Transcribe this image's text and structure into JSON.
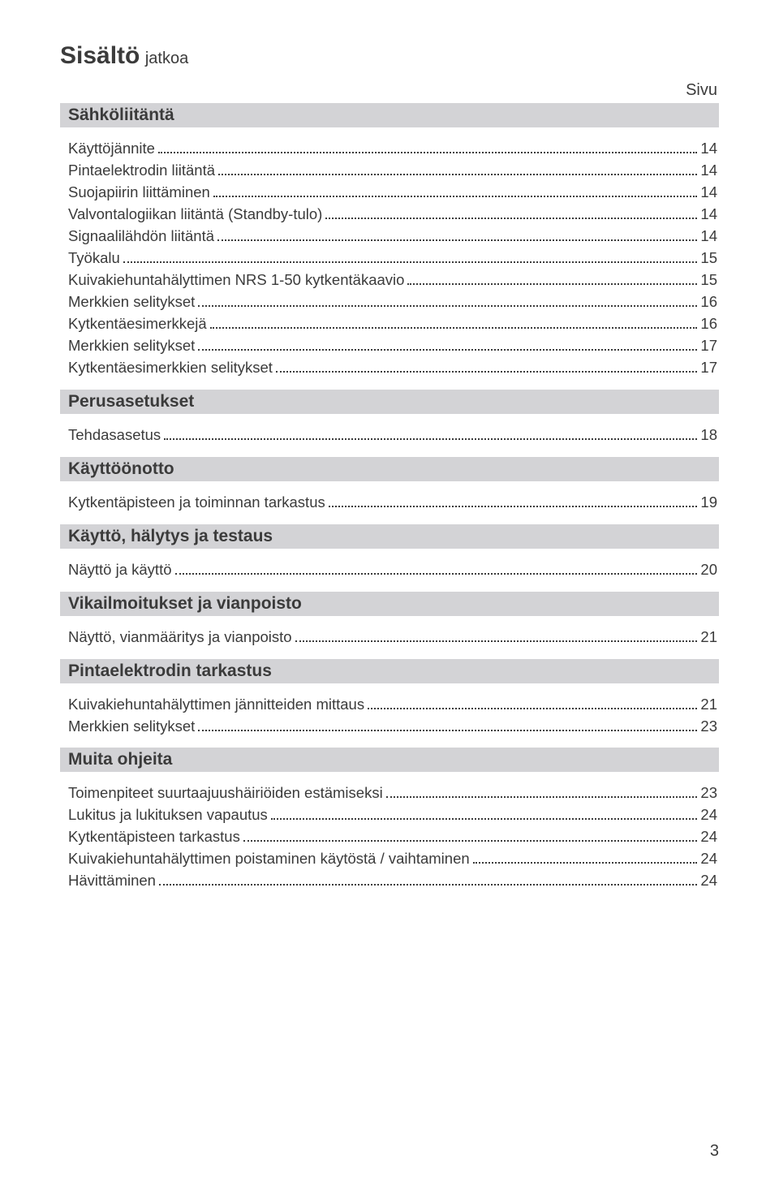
{
  "title": {
    "main": "Sisältö",
    "suffix": "jatkoa"
  },
  "page_label": "Sivu",
  "page_number": "3",
  "colors": {
    "section_bg": "#d3d3d6",
    "text": "#3b3b3b",
    "background": "#ffffff"
  },
  "sections": [
    {
      "heading": "Sähköliitäntä",
      "items": [
        {
          "label": "Käyttöjännite",
          "page": "14"
        },
        {
          "label": "Pintaelektrodin liitäntä",
          "page": "14"
        },
        {
          "label": "Suojapiirin liittäminen",
          "page": "14"
        },
        {
          "label": "Valvontalogiikan liitäntä (Standby-tulo)",
          "page": "14"
        },
        {
          "label": "Signaalilähdön liitäntä",
          "page": "14"
        },
        {
          "label": "Työkalu",
          "page": "15"
        },
        {
          "label": "Kuivakiehuntahälyttimen NRS 1-50 kytkentäkaavio",
          "page": "15"
        },
        {
          "label": "Merkkien selitykset",
          "page": "16"
        },
        {
          "label": "Kytkentäesimerkkejä",
          "page": "16"
        },
        {
          "label": "Merkkien selitykset",
          "page": "17"
        },
        {
          "label": "Kytkentäesimerkkien selitykset",
          "page": "17"
        }
      ]
    },
    {
      "heading": "Perusasetukset",
      "items": [
        {
          "label": "Tehdasasetus",
          "page": "18"
        }
      ]
    },
    {
      "heading": "Käyttöönotto",
      "items": [
        {
          "label": "Kytkentäpisteen ja toiminnan tarkastus",
          "page": "19"
        }
      ]
    },
    {
      "heading": "Käyttö, hälytys ja testaus",
      "items": [
        {
          "label": "Näyttö ja käyttö",
          "page": "20"
        }
      ]
    },
    {
      "heading": "Vikailmoitukset ja vianpoisto",
      "items": [
        {
          "label": "Näyttö, vianmääritys ja vianpoisto",
          "page": "21"
        }
      ]
    },
    {
      "heading": "Pintaelektrodin tarkastus",
      "items": [
        {
          "label": "Kuivakiehuntahälyttimen jännitteiden mittaus",
          "page": "21"
        },
        {
          "label": "Merkkien selitykset",
          "page": "23"
        }
      ]
    },
    {
      "heading": "Muita ohjeita",
      "items": [
        {
          "label": "Toimenpiteet suurtaajuushäiriöiden estämiseksi",
          "page": "23"
        },
        {
          "label": "Lukitus ja lukituksen vapautus",
          "page": "24"
        },
        {
          "label": "Kytkentäpisteen tarkastus",
          "page": "24"
        },
        {
          "label": "Kuivakiehuntahälyttimen poistaminen käytöstä / vaihtaminen",
          "page": "24"
        },
        {
          "label": "Hävittäminen",
          "page": "24"
        }
      ]
    }
  ]
}
